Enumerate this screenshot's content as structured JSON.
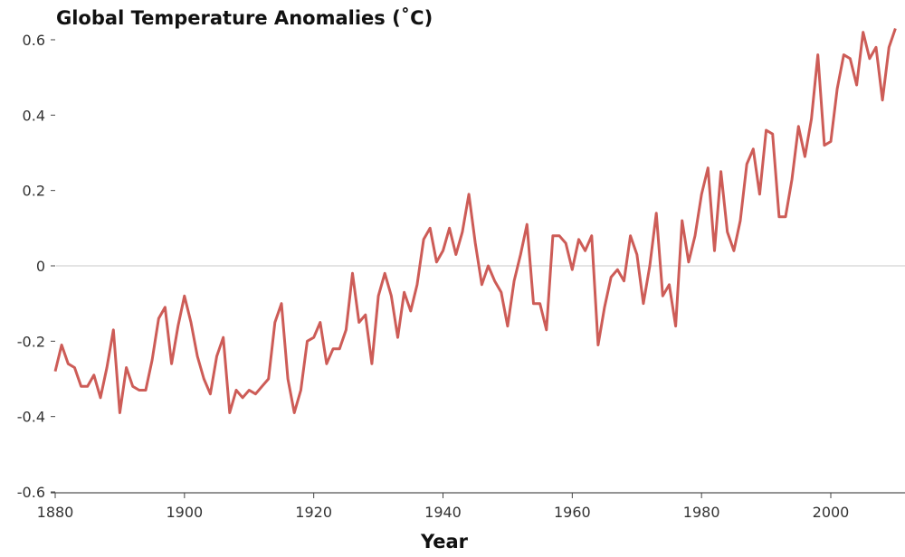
{
  "chart_data": {
    "type": "line",
    "title": "Global Temperature Anomalies (˚C)",
    "xlabel": "Year",
    "ylabel": "",
    "xlim": [
      1880,
      2010
    ],
    "ylim": [
      -0.6,
      0.65
    ],
    "x_ticks": [
      "1880",
      "1900",
      "1920",
      "1940",
      "1960",
      "1980",
      "2000"
    ],
    "y_ticks": [
      "0.6",
      "0.4",
      "0.2",
      "0",
      "-0.2",
      "-0.4",
      "-0.6"
    ],
    "grid": "horizontal line at 0 only",
    "legend": "none",
    "line_color": "#cd5c57",
    "x": [
      1880,
      1881,
      1882,
      1883,
      1884,
      1885,
      1886,
      1887,
      1888,
      1889,
      1890,
      1891,
      1892,
      1893,
      1894,
      1895,
      1896,
      1897,
      1898,
      1899,
      1900,
      1901,
      1902,
      1903,
      1904,
      1905,
      1906,
      1907,
      1908,
      1909,
      1910,
      1911,
      1912,
      1913,
      1914,
      1915,
      1916,
      1917,
      1918,
      1919,
      1920,
      1921,
      1922,
      1923,
      1924,
      1925,
      1926,
      1927,
      1928,
      1929,
      1930,
      1931,
      1932,
      1933,
      1934,
      1935,
      1936,
      1937,
      1938,
      1939,
      1940,
      1941,
      1942,
      1943,
      1944,
      1945,
      1946,
      1947,
      1948,
      1949,
      1950,
      1951,
      1952,
      1953,
      1954,
      1955,
      1956,
      1957,
      1958,
      1959,
      1960,
      1961,
      1962,
      1963,
      1964,
      1965,
      1966,
      1967,
      1968,
      1969,
      1970,
      1971,
      1972,
      1973,
      1974,
      1975,
      1976,
      1977,
      1978,
      1979,
      1980,
      1981,
      1982,
      1983,
      1984,
      1985,
      1986,
      1987,
      1988,
      1989,
      1990,
      1991,
      1992,
      1993,
      1994,
      1995,
      1996,
      1997,
      1998,
      1999,
      2000,
      2001,
      2002,
      2003,
      2004,
      2005,
      2006,
      2007,
      2008,
      2009,
      2010
    ],
    "y": [
      -0.28,
      -0.21,
      -0.26,
      -0.27,
      -0.32,
      -0.32,
      -0.29,
      -0.35,
      -0.27,
      -0.17,
      -0.39,
      -0.27,
      -0.32,
      -0.33,
      -0.33,
      -0.25,
      -0.14,
      -0.11,
      -0.26,
      -0.16,
      -0.08,
      -0.15,
      -0.24,
      -0.3,
      -0.34,
      -0.24,
      -0.19,
      -0.39,
      -0.33,
      -0.35,
      -0.33,
      -0.34,
      -0.32,
      -0.3,
      -0.15,
      -0.1,
      -0.3,
      -0.39,
      -0.33,
      -0.2,
      -0.19,
      -0.15,
      -0.26,
      -0.22,
      -0.22,
      -0.17,
      -0.02,
      -0.15,
      -0.13,
      -0.26,
      -0.08,
      -0.02,
      -0.08,
      -0.19,
      -0.07,
      -0.12,
      -0.05,
      0.07,
      0.1,
      0.01,
      0.04,
      0.1,
      0.03,
      0.09,
      0.19,
      0.06,
      -0.05,
      0.0,
      -0.04,
      -0.07,
      -0.16,
      -0.04,
      0.03,
      0.11,
      -0.1,
      -0.1,
      -0.17,
      0.08,
      0.08,
      0.06,
      -0.01,
      0.07,
      0.04,
      0.08,
      -0.21,
      -0.11,
      -0.03,
      -0.01,
      -0.04,
      0.08,
      0.03,
      -0.1,
      0.0,
      0.14,
      -0.08,
      -0.05,
      -0.16,
      0.12,
      0.01,
      0.08,
      0.19,
      0.26,
      0.04,
      0.25,
      0.09,
      0.04,
      0.12,
      0.27,
      0.31,
      0.19,
      0.36,
      0.35,
      0.13,
      0.13,
      0.23,
      0.37,
      0.29,
      0.39,
      0.56,
      0.32,
      0.33,
      0.47,
      0.56,
      0.55,
      0.48,
      0.62,
      0.55,
      0.58,
      0.44,
      0.58,
      0.63
    ]
  }
}
